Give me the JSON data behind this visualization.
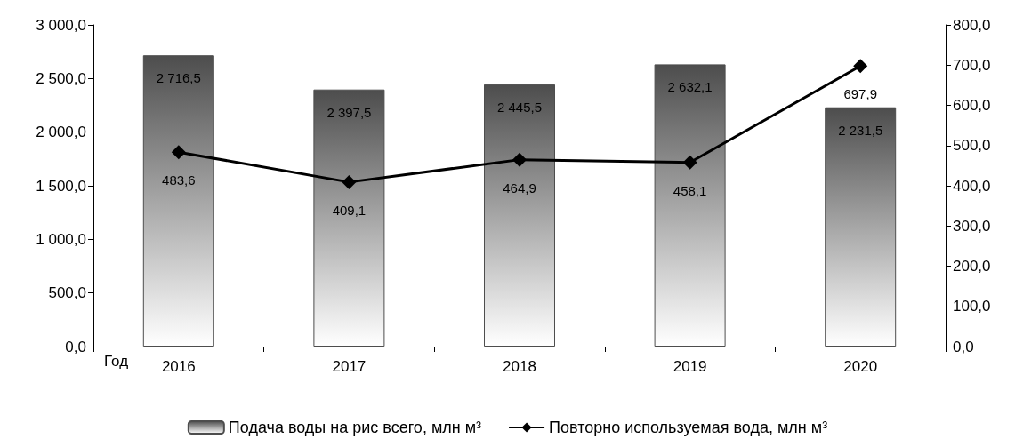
{
  "chart_data": {
    "type": "bar",
    "xlabel": "Год",
    "categories": [
      "2016",
      "2017",
      "2018",
      "2019",
      "2020"
    ],
    "series": [
      {
        "name": "Подача воды на рис всего, млн м³",
        "color": "#4d4d4d",
        "values": [
          2716.5,
          2397.5,
          2445.5,
          2632.1,
          2231.5
        ],
        "value_labels": [
          "2 716,5",
          "2 397,5",
          "2 445,5",
          "2 632,1",
          "2 231,5"
        ]
      },
      {
        "name": "Повторно используемая вода, млн м³",
        "type": "line",
        "axis": "y2",
        "color": "#000000",
        "marker": "diamond",
        "values": [
          483.6,
          409.1,
          464.9,
          458.1,
          697.9
        ],
        "value_labels": [
          "483,6",
          "409,1",
          "464,9",
          "458,1",
          "697,9"
        ]
      }
    ],
    "ylim": [
      0,
      3000
    ],
    "yticks": [
      {
        "value": 0,
        "label": "0,0"
      },
      {
        "value": 500,
        "label": "500,0"
      },
      {
        "value": 1000,
        "label": "1 000,0"
      },
      {
        "value": 1500,
        "label": "1 500,0"
      },
      {
        "value": 2000,
        "label": "2 000,0"
      },
      {
        "value": 2500,
        "label": "2 500,0"
      },
      {
        "value": 3000,
        "label": "3 000,0"
      }
    ],
    "y2lim": [
      0,
      800
    ],
    "y2ticks": [
      {
        "value": 0,
        "label": "0,0"
      },
      {
        "value": 100,
        "label": "100,0"
      },
      {
        "value": 200,
        "label": "200,0"
      },
      {
        "value": 300,
        "label": "300,0"
      },
      {
        "value": 400,
        "label": "400,0"
      },
      {
        "value": 500,
        "label": "500,0"
      },
      {
        "value": 600,
        "label": "600,0"
      },
      {
        "value": 700,
        "label": "700,0"
      },
      {
        "value": 800,
        "label": "800,0"
      }
    ],
    "grid": false,
    "legend": "bottom"
  }
}
